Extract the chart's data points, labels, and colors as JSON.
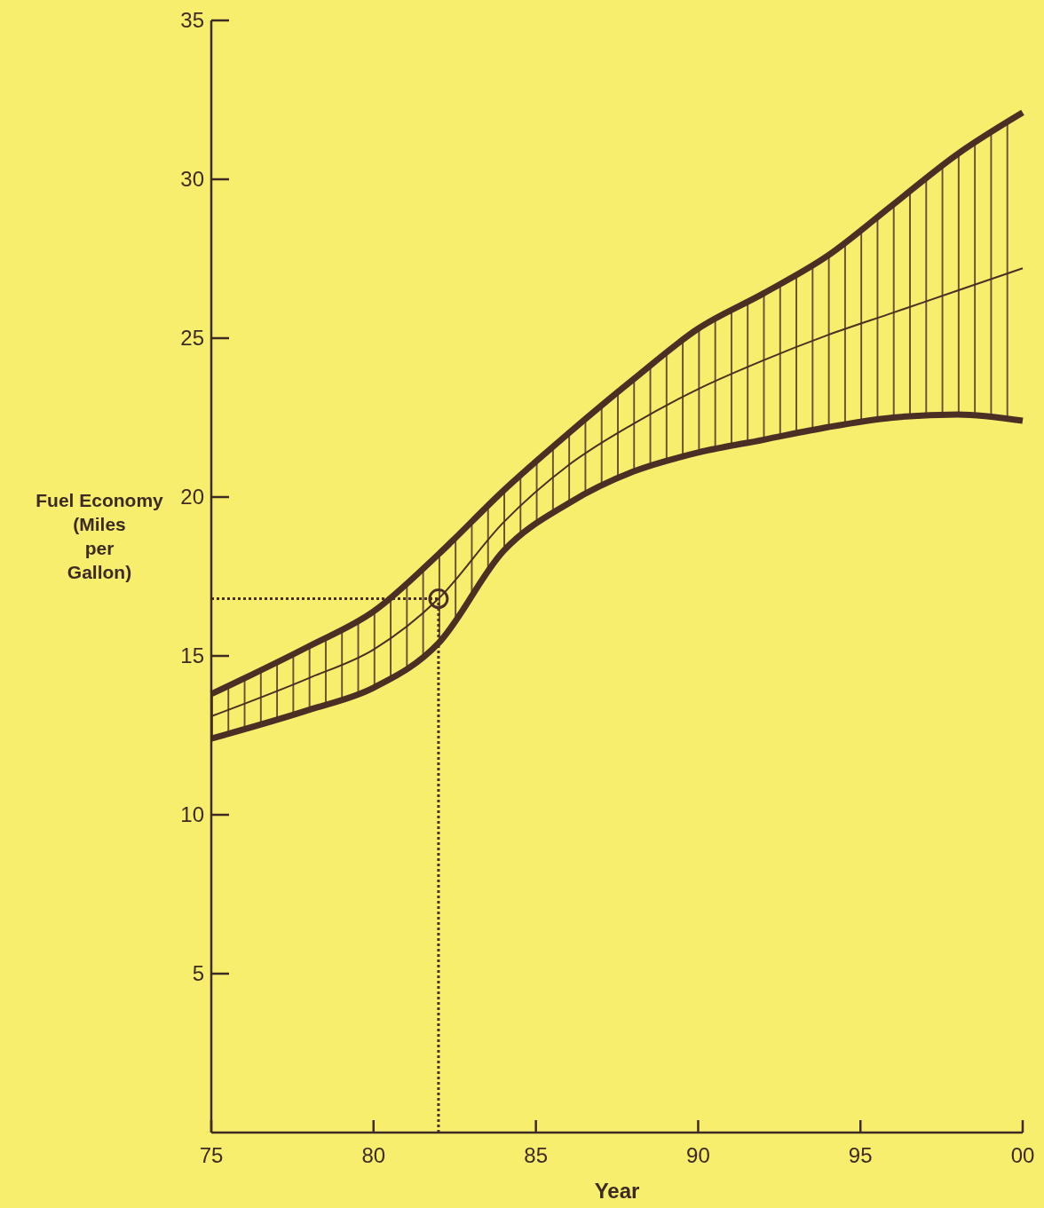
{
  "chart_data": {
    "type": "line",
    "xlabel": "Year",
    "ylabel": "Fuel Economy (Miles per Gallon)",
    "xlim": [
      "1975",
      "2000"
    ],
    "xticks": [
      {
        "value": "1975",
        "label": "75"
      },
      {
        "value": "1980",
        "label": "80"
      },
      {
        "value": "1985",
        "label": "85"
      },
      {
        "value": "1990",
        "label": "90"
      },
      {
        "value": "1995",
        "label": "95"
      },
      {
        "value": "2000",
        "label": "00"
      }
    ],
    "ylim": [
      0,
      35
    ],
    "yticks": [
      5,
      10,
      15,
      20,
      25,
      30,
      35
    ],
    "grid": false,
    "series": [
      {
        "color": "#4a2f24",
        "x": [
          "1975",
          "1978",
          "1980",
          "1982",
          "1984",
          "1986",
          "1988",
          "1990",
          "1992",
          "1994",
          "1996",
          "1998",
          "2000"
        ],
        "values": [
          13.1,
          14.3,
          15.2,
          16.8,
          19.2,
          21.0,
          22.3,
          23.4,
          24.3,
          25.1,
          25.8,
          26.5,
          27.2
        ],
        "lower": [
          12.4,
          13.3,
          14.0,
          15.4,
          18.3,
          19.8,
          20.8,
          21.4,
          21.8,
          22.2,
          22.5,
          22.6,
          22.4
        ],
        "upper": [
          13.8,
          15.3,
          16.4,
          18.2,
          20.2,
          22.0,
          23.7,
          25.3,
          26.4,
          27.6,
          29.2,
          30.8,
          32.1
        ]
      },
      {
        "color": "#4a2f24",
        "x": [
          "1975",
          "1978",
          "1980",
          "1982",
          "1984",
          "1986",
          "1988",
          "1990",
          "1992",
          "1994",
          "1996",
          "1998",
          "2000"
        ],
        "values": [
          12.4,
          13.3,
          14.0,
          15.4,
          18.3,
          19.8,
          20.8,
          21.4,
          21.8,
          22.2,
          22.5,
          22.6,
          22.4
        ]
      },
      {
        "color": "#4a2f24",
        "x": [
          "1975",
          "1978",
          "1980",
          "1982",
          "1984",
          "1986",
          "1988",
          "1990",
          "1992",
          "1994",
          "1996",
          "1998",
          "2000"
        ],
        "values": [
          13.8,
          15.3,
          16.4,
          18.2,
          20.2,
          22.0,
          23.7,
          25.3,
          26.4,
          27.6,
          29.2,
          30.8,
          32.1
        ]
      },
      {
        "type": "scatter",
        "color": "#4a2f24",
        "marker": "circle",
        "x": [
          "1982"
        ],
        "values": [
          16.8
        ]
      }
    ],
    "ref_lines": [
      {
        "axis": "x",
        "value": "1982",
        "color": "#4a2f24",
        "line_style": "dotted"
      },
      {
        "axis": "y",
        "value": 16.8,
        "color": "#4a2f24",
        "line_style": "dotted"
      }
    ]
  }
}
